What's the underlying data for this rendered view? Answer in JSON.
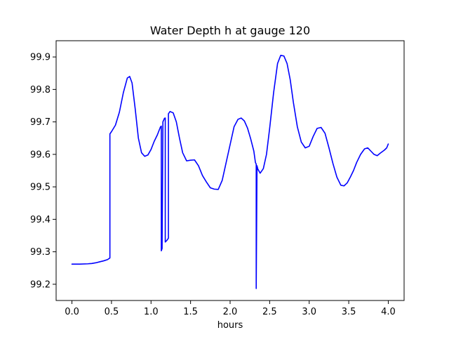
{
  "chart_data": {
    "type": "line",
    "title": "Water Depth h at gauge 120",
    "xlabel": "hours",
    "ylabel": "",
    "xlim": [
      -0.2,
      4.2
    ],
    "ylim": [
      99.15,
      99.95
    ],
    "xticks": [
      0.0,
      0.5,
      1.0,
      1.5,
      2.0,
      2.5,
      3.0,
      3.5,
      4.0
    ],
    "xtick_labels": [
      "0.0",
      "0.5",
      "1.0",
      "1.5",
      "2.0",
      "2.5",
      "3.0",
      "3.5",
      "4.0"
    ],
    "yticks": [
      99.2,
      99.3,
      99.4,
      99.5,
      99.6,
      99.7,
      99.8,
      99.9
    ],
    "ytick_labels": [
      "99.2",
      "99.3",
      "99.4",
      "99.5",
      "99.6",
      "99.7",
      "99.8",
      "99.9"
    ],
    "grid": false,
    "legend": "none",
    "series": [
      {
        "color": "#0000ff",
        "x": [
          0.0,
          0.1,
          0.2,
          0.25,
          0.3,
          0.35,
          0.4,
          0.45,
          0.48,
          0.48,
          0.5,
          0.55,
          0.6,
          0.65,
          0.7,
          0.73,
          0.76,
          0.8,
          0.84,
          0.88,
          0.92,
          0.96,
          1.0,
          1.04,
          1.08,
          1.12,
          1.13,
          1.13,
          1.14,
          1.15,
          1.15,
          1.17,
          1.18,
          1.18,
          1.2,
          1.22,
          1.22,
          1.24,
          1.28,
          1.32,
          1.36,
          1.4,
          1.45,
          1.5,
          1.55,
          1.6,
          1.65,
          1.7,
          1.75,
          1.8,
          1.85,
          1.9,
          1.95,
          2.0,
          2.05,
          2.1,
          2.14,
          2.18,
          2.22,
          2.26,
          2.3,
          2.32,
          2.33,
          2.33,
          2.34,
          2.35,
          2.38,
          2.42,
          2.46,
          2.5,
          2.55,
          2.6,
          2.64,
          2.68,
          2.72,
          2.76,
          2.8,
          2.85,
          2.9,
          2.95,
          3.0,
          3.05,
          3.1,
          3.15,
          3.2,
          3.25,
          3.3,
          3.35,
          3.4,
          3.44,
          3.48,
          3.52,
          3.56,
          3.6,
          3.65,
          3.7,
          3.74,
          3.78,
          3.82,
          3.86,
          3.9,
          3.95,
          3.98,
          4.0
        ],
        "y": [
          99.262,
          99.262,
          99.263,
          99.264,
          99.266,
          99.269,
          99.272,
          99.276,
          99.281,
          99.663,
          99.67,
          99.69,
          99.73,
          99.79,
          99.835,
          99.84,
          99.82,
          99.74,
          99.65,
          99.605,
          99.594,
          99.598,
          99.615,
          99.64,
          99.66,
          99.685,
          99.687,
          99.303,
          99.31,
          99.69,
          99.7,
          99.711,
          99.712,
          99.33,
          99.335,
          99.342,
          99.725,
          99.732,
          99.728,
          99.7,
          99.65,
          99.605,
          99.58,
          99.582,
          99.583,
          99.565,
          99.535,
          99.515,
          99.497,
          99.493,
          99.492,
          99.52,
          99.575,
          99.63,
          99.685,
          99.708,
          99.712,
          99.703,
          99.681,
          99.648,
          99.61,
          99.575,
          99.57,
          99.187,
          99.565,
          99.555,
          99.542,
          99.556,
          99.6,
          99.68,
          99.79,
          99.88,
          99.905,
          99.903,
          99.88,
          99.83,
          99.76,
          99.685,
          99.638,
          99.62,
          99.625,
          99.655,
          99.68,
          99.683,
          99.665,
          99.62,
          99.572,
          99.53,
          99.505,
          99.503,
          99.512,
          99.53,
          99.55,
          99.575,
          99.6,
          99.617,
          99.62,
          99.61,
          99.6,
          99.596,
          99.604,
          99.613,
          99.62,
          99.632
        ]
      }
    ]
  }
}
